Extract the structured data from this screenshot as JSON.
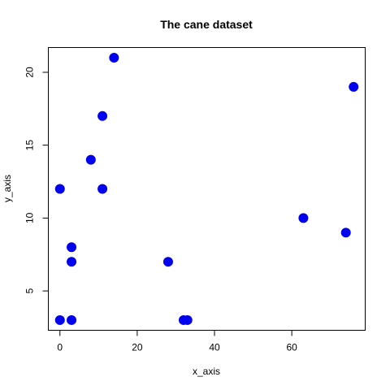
{
  "chart_data": {
    "type": "scatter",
    "title": "The cane dataset",
    "xlabel": "x_axis",
    "ylabel": "y_axis",
    "xlim": [
      -3,
      79
    ],
    "ylim": [
      2.3,
      21.7
    ],
    "xticks": [
      0,
      20,
      40,
      60
    ],
    "yticks": [
      5,
      10,
      15,
      20
    ],
    "grid": false,
    "point_color": "#0000ee",
    "points": [
      {
        "x": 14,
        "y": 21
      },
      {
        "x": 76,
        "y": 19
      },
      {
        "x": 11,
        "y": 17
      },
      {
        "x": 8,
        "y": 14
      },
      {
        "x": 0,
        "y": 12
      },
      {
        "x": 11,
        "y": 12
      },
      {
        "x": 63,
        "y": 10
      },
      {
        "x": 74,
        "y": 9
      },
      {
        "x": 3,
        "y": 8
      },
      {
        "x": 3,
        "y": 7
      },
      {
        "x": 28,
        "y": 7
      },
      {
        "x": 0,
        "y": 3
      },
      {
        "x": 3,
        "y": 3
      },
      {
        "x": 32,
        "y": 3
      },
      {
        "x": 33,
        "y": 3
      }
    ]
  }
}
